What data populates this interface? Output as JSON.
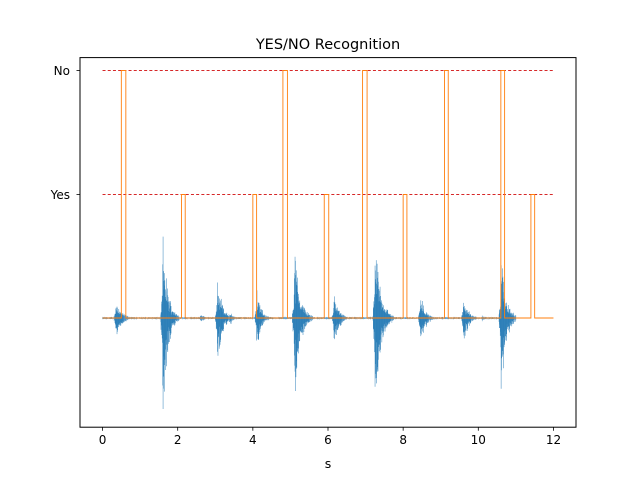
{
  "chart_data": {
    "type": "line",
    "title": "YES/NO Recognition",
    "xlabel": "s",
    "ylabel": "",
    "xlim": [
      -0.6,
      12.6
    ],
    "xticks": [
      0,
      2,
      4,
      6,
      8,
      10,
      12
    ],
    "y_category_ticks": [
      "Yes",
      "No"
    ],
    "grid": false,
    "series": [
      {
        "kind": "threshold_lines",
        "style": "dashed",
        "color": "#d62728",
        "levels": [
          "Yes",
          "No"
        ],
        "x_range": [
          0,
          12
        ]
      },
      {
        "kind": "recognition_step",
        "color": "#ff7f0e",
        "baseline": "0",
        "pulses": [
          {
            "start": 0.5,
            "end": 0.62,
            "label": "No"
          },
          {
            "start": 2.1,
            "end": 2.2,
            "label": "Yes"
          },
          {
            "start": 4.0,
            "end": 4.1,
            "label": "Yes"
          },
          {
            "start": 4.8,
            "end": 4.92,
            "label": "No"
          },
          {
            "start": 5.9,
            "end": 6.02,
            "label": "Yes"
          },
          {
            "start": 6.92,
            "end": 7.04,
            "label": "No"
          },
          {
            "start": 8.0,
            "end": 8.1,
            "label": "Yes"
          },
          {
            "start": 9.1,
            "end": 9.2,
            "label": "No"
          },
          {
            "start": 10.6,
            "end": 10.7,
            "label": "No"
          },
          {
            "start": 11.4,
            "end": 11.5,
            "label": "Yes"
          }
        ],
        "x_range": [
          0,
          12.0
        ]
      },
      {
        "kind": "audio_waveform",
        "color": "#1f77b4",
        "x_range": [
          0,
          11.0
        ],
        "bursts": [
          {
            "t": 0.35,
            "amp": 0.22,
            "dur": 0.5
          },
          {
            "t": 1.6,
            "amp": 0.95,
            "dur": 0.45
          },
          {
            "t": 2.6,
            "amp": 0.05,
            "dur": 0.4
          },
          {
            "t": 3.05,
            "amp": 0.5,
            "dur": 0.45
          },
          {
            "t": 3.4,
            "amp": 0.06,
            "dur": 0.4
          },
          {
            "t": 4.1,
            "amp": 0.32,
            "dur": 0.4
          },
          {
            "t": 5.1,
            "amp": 0.85,
            "dur": 0.5
          },
          {
            "t": 5.5,
            "amp": 0.05,
            "dur": 0.3
          },
          {
            "t": 6.15,
            "amp": 0.28,
            "dur": 0.45
          },
          {
            "t": 7.25,
            "amp": 1.0,
            "dur": 0.5
          },
          {
            "t": 8.45,
            "amp": 0.28,
            "dur": 0.45
          },
          {
            "t": 9.6,
            "amp": 0.25,
            "dur": 0.45
          },
          {
            "t": 10.1,
            "amp": 0.04,
            "dur": 0.3
          },
          {
            "t": 10.6,
            "amp": 0.75,
            "dur": 0.45
          }
        ]
      }
    ]
  }
}
